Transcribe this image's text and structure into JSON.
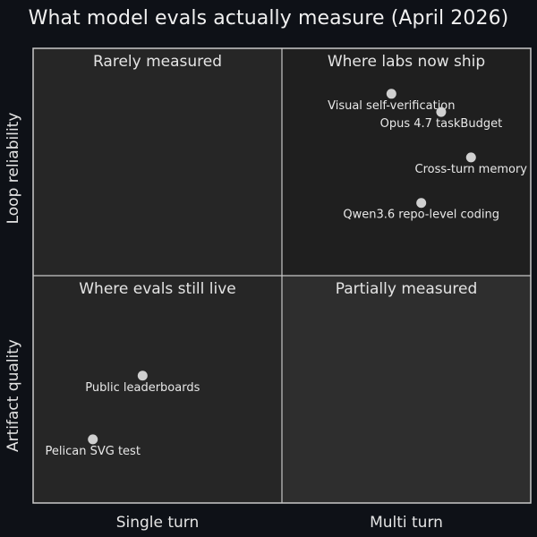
{
  "chart_data": {
    "type": "scatter",
    "title": "What model evals actually measure (April 2026)",
    "x_categories": [
      "Single turn",
      "Multi turn"
    ],
    "y_categories": [
      "Artifact quality",
      "Loop reliability"
    ],
    "xlim": [
      0,
      10
    ],
    "ylim": [
      0,
      10
    ],
    "grid": true,
    "quadrants": [
      {
        "label": "Rarely measured",
        "x": "Single turn",
        "y": "Loop reliability"
      },
      {
        "label": "Where labs now ship",
        "x": "Multi turn",
        "y": "Loop reliability"
      },
      {
        "label": "Where evals still live",
        "x": "Single turn",
        "y": "Artifact quality"
      },
      {
        "label": "Partially measured",
        "x": "Multi turn",
        "y": "Artifact quality"
      }
    ],
    "points": [
      {
        "label": "Visual self-verification",
        "x": 7.2,
        "y": 9.0
      },
      {
        "label": "Opus 4.7 taskBudget",
        "x": 8.2,
        "y": 8.6
      },
      {
        "label": "Cross-turn memory",
        "x": 8.8,
        "y": 7.6
      },
      {
        "label": "Qwen3.6 repo-level coding",
        "x": 7.8,
        "y": 6.6
      },
      {
        "label": "Public leaderboards",
        "x": 2.2,
        "y": 2.8
      },
      {
        "label": "Pelican SVG test",
        "x": 1.2,
        "y": 1.4
      }
    ],
    "colors": {
      "background": "#0e1117",
      "quadrant_top_left": "#262626",
      "quadrant_top_right": "#1f1f1f",
      "quadrant_bottom_left": "#262626",
      "quadrant_bottom_right": "#2e2e2e",
      "border": "#c8c8c8",
      "marker": "#d0d0d0"
    }
  }
}
